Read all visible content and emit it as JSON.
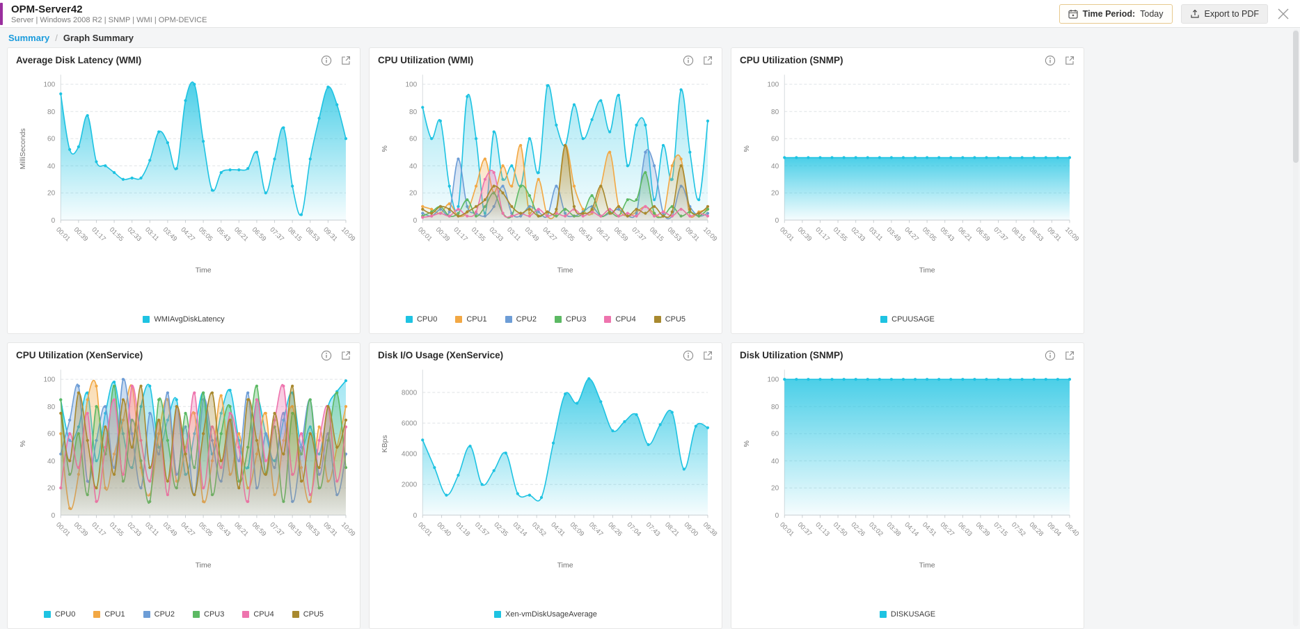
{
  "header": {
    "title": "OPM-Server42",
    "subtitle": "Server | Windows 2008 R2  | SNMP  | WMI  | OPM-DEVICE",
    "time_period_label": "Time Period:",
    "time_period_value": "Today",
    "export_label": "Export to PDF"
  },
  "breadcrumb": {
    "root": "Summary",
    "separator": "/",
    "current": "Graph Summary"
  },
  "colors": {
    "accent_purple": "#9a2f9e",
    "link_blue": "#1a9bdc",
    "cyan": "#1ec3e2",
    "orange": "#f2a844",
    "blue": "#6d9dd6",
    "green": "#5cb963",
    "pink": "#ee74ae",
    "olive": "#a8892f"
  },
  "chart_data": [
    {
      "type": "area",
      "title": "Average Disk Latency (WMI)",
      "ylabel": "MilliSeconds",
      "xlabel": "Time",
      "ylim": [
        0,
        105
      ],
      "yticks": [
        0,
        20,
        40,
        60,
        80,
        100
      ],
      "grid": true,
      "legend_position": "bottom",
      "x_ticklabels": [
        "00:01",
        "00:39",
        "01:17",
        "01:55",
        "02:33",
        "03:11",
        "03:49",
        "04:27",
        "05:05",
        "05:43",
        "06:21",
        "06:59",
        "07:37",
        "08:15",
        "08:53",
        "09:31",
        "10:09"
      ],
      "series": [
        {
          "name": "WMIAvgDiskLatency",
          "color": "#1ec3e2",
          "values": [
            93,
            52,
            54,
            77,
            43,
            40,
            35,
            30,
            31,
            31,
            44,
            65,
            57,
            38,
            88,
            100,
            58,
            22,
            35,
            37,
            37,
            38,
            50,
            20,
            45,
            68,
            25,
            4,
            45,
            75,
            98,
            85,
            60
          ]
        }
      ]
    },
    {
      "type": "area",
      "title": "CPU Utilization (WMI)",
      "ylabel": "%",
      "xlabel": "Time",
      "ylim": [
        0,
        105
      ],
      "yticks": [
        0,
        20,
        40,
        60,
        80,
        100
      ],
      "grid": true,
      "legend_position": "bottom",
      "x_ticklabels": [
        "00:01",
        "00:39",
        "01:17",
        "01:55",
        "02:33",
        "03:11",
        "03:49",
        "04:27",
        "05:05",
        "05:43",
        "06:21",
        "06:59",
        "07:37",
        "08:15",
        "08:53",
        "09:31",
        "10:09"
      ],
      "series": [
        {
          "name": "CPU0",
          "color": "#1ec3e2",
          "values": [
            83,
            60,
            73,
            25,
            10,
            91,
            60,
            5,
            65,
            30,
            40,
            25,
            60,
            35,
            99,
            70,
            55,
            85,
            60,
            74,
            88,
            65,
            92,
            40,
            70,
            70,
            15,
            55,
            30,
            96,
            50,
            15,
            73
          ]
        },
        {
          "name": "CPU1",
          "color": "#f2a844",
          "values": [
            10,
            8,
            5,
            12,
            3,
            6,
            25,
            45,
            20,
            40,
            25,
            55,
            5,
            30,
            3,
            6,
            55,
            25,
            8,
            5,
            25,
            50,
            10,
            3,
            6,
            10,
            5,
            3,
            40,
            45,
            3,
            6,
            8
          ]
        },
        {
          "name": "CPU2",
          "color": "#6d9dd6",
          "values": [
            5,
            3,
            8,
            6,
            45,
            10,
            5,
            3,
            10,
            25,
            5,
            3,
            10,
            6,
            3,
            25,
            5,
            3,
            6,
            10,
            3,
            5,
            8,
            3,
            5,
            50,
            40,
            5,
            3,
            25,
            10,
            3,
            5
          ]
        },
        {
          "name": "CPU3",
          "color": "#5cb963",
          "values": [
            3,
            6,
            10,
            3,
            5,
            15,
            3,
            10,
            20,
            5,
            3,
            25,
            18,
            3,
            6,
            3,
            8,
            3,
            5,
            18,
            3,
            6,
            3,
            15,
            15,
            35,
            5,
            3,
            10,
            3,
            6,
            3,
            8
          ]
        },
        {
          "name": "CPU4",
          "color": "#ee74ae",
          "values": [
            2,
            3,
            5,
            3,
            8,
            3,
            6,
            30,
            35,
            5,
            3,
            5,
            3,
            8,
            3,
            5,
            3,
            8,
            3,
            6,
            3,
            8,
            3,
            5,
            3,
            10,
            3,
            6,
            3,
            8,
            3,
            5,
            3
          ]
        },
        {
          "name": "CPU5",
          "color": "#a8892f",
          "values": [
            8,
            5,
            10,
            8,
            3,
            6,
            10,
            15,
            25,
            20,
            10,
            5,
            8,
            3,
            6,
            8,
            55,
            10,
            5,
            8,
            25,
            5,
            10,
            3,
            8,
            5,
            10,
            3,
            6,
            40,
            8,
            5,
            10
          ]
        }
      ]
    },
    {
      "type": "area",
      "title": "CPU Utilization (SNMP)",
      "ylabel": "%",
      "xlabel": "Time",
      "ylim": [
        0,
        105
      ],
      "yticks": [
        0,
        20,
        40,
        60,
        80,
        100
      ],
      "grid": true,
      "legend_position": "bottom",
      "x_ticklabels": [
        "00:01",
        "00:39",
        "01:17",
        "01:55",
        "02:33",
        "03:11",
        "03:49",
        "04:27",
        "05:05",
        "05:43",
        "06:21",
        "06:59",
        "07:37",
        "08:15",
        "08:53",
        "09:31",
        "10:09"
      ],
      "series": [
        {
          "name": "CPUUSAGE",
          "color": "#1ec3e2",
          "values": [
            46,
            46,
            46,
            46,
            46,
            46,
            46,
            46,
            46,
            46,
            46,
            46,
            46,
            46,
            46,
            46,
            46,
            46,
            46,
            46,
            46,
            46,
            46,
            46,
            46
          ]
        }
      ]
    },
    {
      "type": "area",
      "title": "CPU Utilization (XenService)",
      "ylabel": "%",
      "xlabel": "Time",
      "ylim": [
        0,
        105
      ],
      "yticks": [
        0,
        20,
        40,
        60,
        80,
        100
      ],
      "grid": true,
      "legend_position": "bottom",
      "x_ticklabels": [
        "00:01",
        "00:39",
        "01:17",
        "01:55",
        "02:33",
        "03:11",
        "03:49",
        "04:27",
        "05:05",
        "05:43",
        "06:21",
        "06:59",
        "07:37",
        "08:15",
        "08:53",
        "09:31",
        "10:09"
      ],
      "series": [
        {
          "name": "CPU0",
          "color": "#1ec3e2",
          "values": [
            85,
            55,
            65,
            90,
            40,
            75,
            98,
            60,
            35,
            80,
            95,
            50,
            70,
            85,
            30,
            60,
            90,
            45,
            75,
            92,
            55,
            35,
            85,
            60,
            40,
            70,
            90,
            50,
            65,
            45,
            80,
            91,
            99
          ]
        },
        {
          "name": "CPU1",
          "color": "#f2a844",
          "values": [
            60,
            5,
            30,
            85,
            95,
            20,
            45,
            70,
            95,
            35,
            15,
            60,
            85,
            25,
            50,
            75,
            10,
            40,
            88,
            30,
            60,
            20,
            45,
            75,
            15,
            55,
            80,
            35,
            10,
            65,
            25,
            50,
            80
          ]
        },
        {
          "name": "CPU2",
          "color": "#6d9dd6",
          "values": [
            45,
            70,
            95,
            25,
            55,
            80,
            35,
            100,
            60,
            20,
            75,
            45,
            90,
            30,
            65,
            15,
            85,
            55,
            25,
            70,
            40,
            90,
            20,
            60,
            35,
            75,
            10,
            50,
            85,
            30,
            60,
            15,
            45
          ]
        },
        {
          "name": "CPU3",
          "color": "#5cb963",
          "values": [
            85,
            30,
            60,
            15,
            80,
            45,
            95,
            25,
            70,
            40,
            10,
            85,
            55,
            20,
            75,
            35,
            90,
            15,
            60,
            80,
            25,
            50,
            95,
            30,
            65,
            10,
            75,
            45,
            85,
            20,
            55,
            90,
            35
          ]
        },
        {
          "name": "CPU4",
          "color": "#ee74ae",
          "values": [
            20,
            60,
            35,
            75,
            10,
            50,
            85,
            30,
            95,
            55,
            25,
            70,
            15,
            80,
            45,
            90,
            20,
            65,
            35,
            75,
            50,
            10,
            85,
            40,
            70,
            95,
            30,
            60,
            15,
            55,
            80,
            25,
            65
          ]
        },
        {
          "name": "CPU5",
          "color": "#a8892f",
          "values": [
            75,
            40,
            90,
            55,
            20,
            65,
            30,
            85,
            50,
            95,
            35,
            70,
            25,
            80,
            45,
            15,
            60,
            90,
            40,
            70,
            20,
            85,
            55,
            30,
            75,
            45,
            95,
            25,
            60,
            35,
            80,
            50,
            70
          ]
        }
      ]
    },
    {
      "type": "area",
      "title": "Disk I/O Usage (XenService)",
      "ylabel": "KBps",
      "xlabel": "Time",
      "ylim": [
        0,
        9300
      ],
      "yticks": [
        0,
        2000,
        4000,
        6000,
        8000
      ],
      "grid": true,
      "legend_position": "bottom",
      "x_ticklabels": [
        "00:01",
        "00:40",
        "01:18",
        "01:57",
        "02:35",
        "03:14",
        "03:52",
        "04:31",
        "05:09",
        "05:47",
        "06:26",
        "07:04",
        "07:43",
        "08:21",
        "09:00",
        "09:38"
      ],
      "series": [
        {
          "name": "Xen-vmDiskUsageAverage",
          "color": "#1ec3e2",
          "values": [
            4900,
            3100,
            1300,
            2600,
            4500,
            2000,
            2900,
            4050,
            1400,
            1300,
            1150,
            4700,
            7900,
            7300,
            8900,
            7400,
            5500,
            6100,
            6550,
            4600,
            5900,
            6700,
            3000,
            5800,
            5700
          ]
        }
      ]
    },
    {
      "type": "area",
      "title": "Disk Utilization (SNMP)",
      "ylabel": "%",
      "xlabel": "Time",
      "ylim": [
        0,
        105
      ],
      "yticks": [
        0,
        20,
        40,
        60,
        80,
        100
      ],
      "grid": true,
      "legend_position": "bottom",
      "x_ticklabels": [
        "00:01",
        "00:37",
        "01:13",
        "01:50",
        "02:26",
        "03:02",
        "03:38",
        "04:14",
        "04:51",
        "05:27",
        "06:03",
        "06:39",
        "07:15",
        "07:52",
        "08:28",
        "09:04",
        "09:40"
      ],
      "series": [
        {
          "name": "DISKUSAGE",
          "color": "#1ec3e2",
          "values": [
            100,
            100,
            100,
            100,
            100,
            100,
            100,
            100,
            100,
            100,
            100,
            100,
            100,
            100,
            100,
            100,
            100,
            100,
            100,
            100,
            100,
            100,
            100,
            100,
            100
          ]
        }
      ]
    }
  ]
}
